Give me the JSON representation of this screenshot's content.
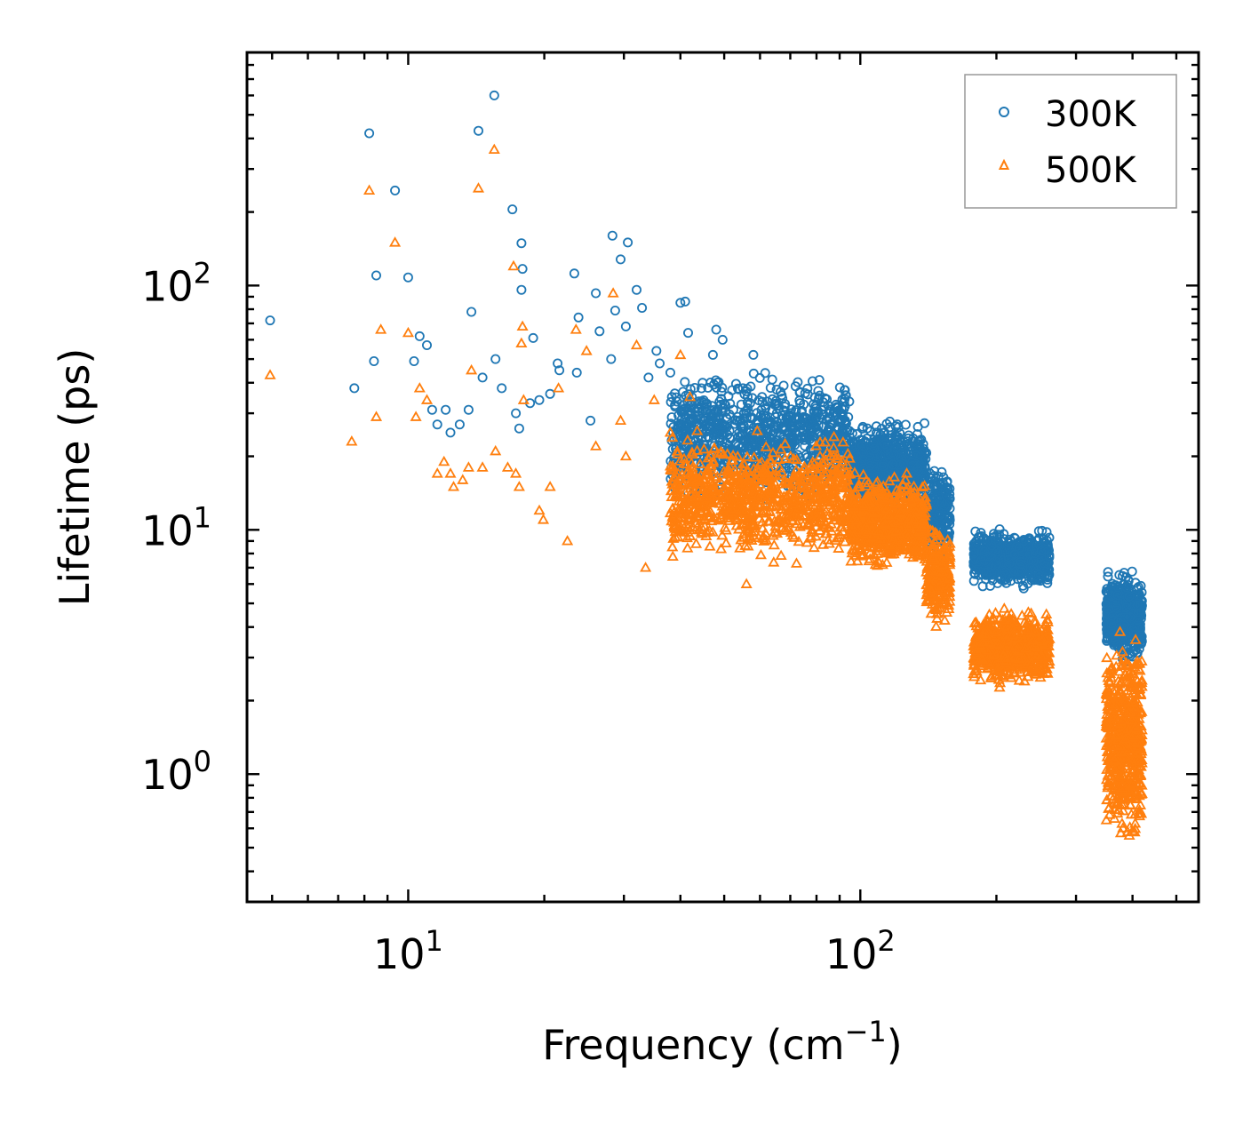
{
  "chart_data": {
    "type": "scatter",
    "xscale": "log",
    "yscale": "log",
    "xlabel": "Frequency (cm",
    "xlabel_sup": "−1",
    "xlabel_suffix": ")",
    "ylabel": "Lifetime (ps)",
    "xlim": [
      4.4,
      560
    ],
    "ylim": [
      0.3,
      900
    ],
    "xticks": [
      {
        "base": "10",
        "exp": "1",
        "value": 10
      },
      {
        "base": "10",
        "exp": "2",
        "value": 100
      }
    ],
    "yticks": [
      {
        "base": "10",
        "exp": "0",
        "value": 1
      },
      {
        "base": "10",
        "exp": "1",
        "value": 10
      },
      {
        "base": "10",
        "exp": "2",
        "value": 100
      }
    ],
    "legend_position": "top-right",
    "series": [
      {
        "name": "300K",
        "marker": "circle",
        "color": "#1f77b4",
        "points": [
          [
            4.95,
            72
          ],
          [
            7.6,
            38
          ],
          [
            8.2,
            420
          ],
          [
            8.5,
            110
          ],
          [
            8.4,
            49
          ],
          [
            9.35,
            245
          ],
          [
            10.0,
            108
          ],
          [
            10.3,
            49
          ],
          [
            10.6,
            62
          ],
          [
            11.0,
            57
          ],
          [
            11.3,
            31
          ],
          [
            11.6,
            27
          ],
          [
            12.1,
            31
          ],
          [
            12.4,
            25
          ],
          [
            13.0,
            27
          ],
          [
            13.6,
            31
          ],
          [
            13.8,
            78
          ],
          [
            14.3,
            430
          ],
          [
            14.6,
            42
          ],
          [
            15.5,
            600
          ],
          [
            15.6,
            50
          ],
          [
            16.1,
            38
          ],
          [
            17.0,
            205
          ],
          [
            17.3,
            30
          ],
          [
            17.6,
            26
          ],
          [
            17.8,
            149
          ],
          [
            17.8,
            96
          ],
          [
            17.9,
            117
          ],
          [
            18.6,
            33
          ],
          [
            18.9,
            61
          ],
          [
            19.5,
            34
          ],
          [
            20.6,
            36
          ],
          [
            21.4,
            48
          ],
          [
            21.6,
            45
          ],
          [
            23.3,
            112
          ],
          [
            23.6,
            44
          ],
          [
            23.8,
            74
          ],
          [
            25.3,
            28
          ],
          [
            26.0,
            93
          ],
          [
            26.5,
            65
          ],
          [
            28.1,
            50
          ],
          [
            28.3,
            160
          ],
          [
            28.7,
            79
          ],
          [
            29.5,
            128
          ],
          [
            30.3,
            68
          ],
          [
            30.6,
            150
          ],
          [
            32.0,
            96
          ],
          [
            32.9,
            81
          ],
          [
            34.0,
            42
          ],
          [
            35.4,
            54
          ],
          [
            36.0,
            48
          ],
          [
            38.0,
            44
          ],
          [
            40.0,
            85
          ],
          [
            41.0,
            86
          ],
          [
            41.6,
            64
          ],
          [
            44.8,
            40
          ],
          [
            47.2,
            52
          ],
          [
            48.0,
            66
          ],
          [
            49.6,
            60
          ],
          [
            55.0,
            38
          ],
          [
            56.0,
            30
          ],
          [
            58.0,
            52
          ],
          [
            58.5,
            16
          ]
        ],
        "clusters": [
          {
            "x_range": [
              38,
              95
            ],
            "y_range": [
              12,
              48
            ],
            "count": 900
          },
          {
            "x_range": [
              95,
              140
            ],
            "y_range": [
              11,
              30
            ],
            "count": 700
          },
          {
            "x_range": [
              140,
              158
            ],
            "y_range": [
              7,
              20
            ],
            "count": 220
          },
          {
            "x_range": [
              178,
              262
            ],
            "y_range": [
              5.5,
              10.5
            ],
            "count": 650
          },
          {
            "x_range": [
              350,
              420
            ],
            "y_range": [
              2.7,
              7.2
            ],
            "count": 550
          }
        ]
      },
      {
        "name": "500K",
        "marker": "triangle",
        "color": "#ff7f0e",
        "points": [
          [
            4.95,
            43
          ],
          [
            7.5,
            23
          ],
          [
            8.2,
            245
          ],
          [
            8.5,
            29
          ],
          [
            8.7,
            66
          ],
          [
            9.35,
            150
          ],
          [
            10.0,
            64
          ],
          [
            10.4,
            29
          ],
          [
            10.6,
            38
          ],
          [
            11.0,
            34
          ],
          [
            11.6,
            17
          ],
          [
            12.0,
            19
          ],
          [
            12.4,
            17
          ],
          [
            12.6,
            15
          ],
          [
            13.2,
            16
          ],
          [
            13.6,
            18
          ],
          [
            13.8,
            45
          ],
          [
            14.3,
            250
          ],
          [
            14.6,
            18
          ],
          [
            15.5,
            360
          ],
          [
            15.6,
            21
          ],
          [
            16.6,
            18
          ],
          [
            17.1,
            120
          ],
          [
            17.3,
            17
          ],
          [
            17.6,
            15
          ],
          [
            17.8,
            58
          ],
          [
            17.9,
            68
          ],
          [
            18.0,
            34
          ],
          [
            19.5,
            12
          ],
          [
            19.9,
            11
          ],
          [
            20.6,
            15
          ],
          [
            21.5,
            38
          ],
          [
            22.5,
            9
          ],
          [
            23.5,
            66
          ],
          [
            24.8,
            54
          ],
          [
            26.0,
            22
          ],
          [
            28.4,
            93
          ],
          [
            29.5,
            28
          ],
          [
            30.3,
            20
          ],
          [
            32.0,
            57
          ],
          [
            33.5,
            7
          ],
          [
            35.0,
            34
          ],
          [
            38.0,
            25
          ],
          [
            40.0,
            52
          ],
          [
            42.0,
            35
          ],
          [
            46.7,
            20
          ],
          [
            50.0,
            15
          ],
          [
            56.0,
            6
          ],
          [
            58.5,
            16
          ]
        ],
        "clusters": [
          {
            "x_range": [
              38,
              95
            ],
            "y_range": [
              7,
              26
            ],
            "count": 900
          },
          {
            "x_range": [
              95,
              140
            ],
            "y_range": [
              6.5,
              18
            ],
            "count": 700
          },
          {
            "x_range": [
              140,
              158
            ],
            "y_range": [
              3.8,
              11
            ],
            "count": 220
          },
          {
            "x_range": [
              178,
              262
            ],
            "y_range": [
              2.2,
              5.0
            ],
            "count": 650
          },
          {
            "x_range": [
              350,
              420
            ],
            "y_range": [
              0.45,
              4.3
            ],
            "count": 550
          }
        ]
      }
    ]
  }
}
